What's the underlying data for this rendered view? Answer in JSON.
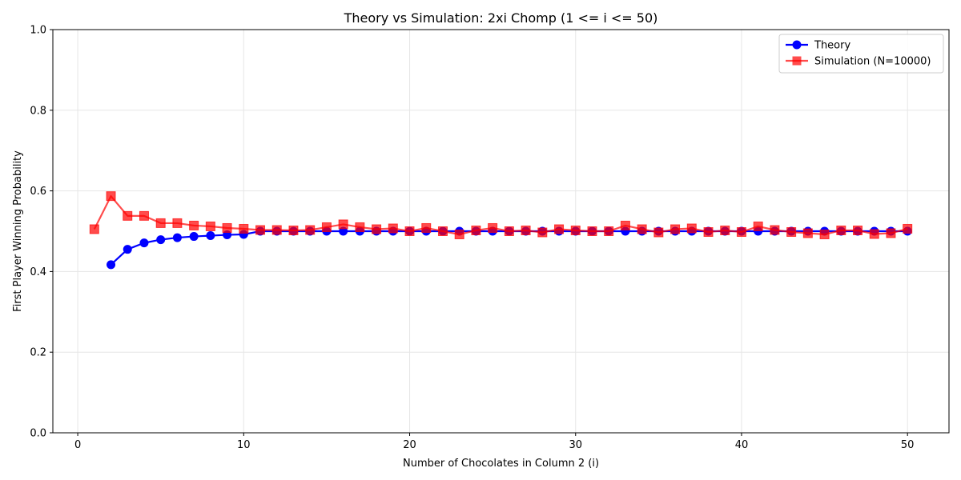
{
  "chart_data": {
    "type": "line",
    "title": "Theory vs Simulation: 2xi Chomp (1 <= i <= 50)",
    "xlabel": "Number of Chocolates in Column 2 (i)",
    "ylabel": "First Player Winning Probability",
    "xlim": [
      -1.5,
      52.5
    ],
    "ylim": [
      0.0,
      1.0
    ],
    "xticks": [
      0,
      10,
      20,
      30,
      40,
      50
    ],
    "yticks": [
      0.0,
      0.2,
      0.4,
      0.6,
      0.8,
      1.0
    ],
    "xtick_labels": [
      "0",
      "10",
      "20",
      "30",
      "40",
      "50"
    ],
    "ytick_labels": [
      "0.0",
      "0.2",
      "0.4",
      "0.6",
      "0.8",
      "1.0"
    ],
    "grid": true,
    "legend_position": "top-right",
    "series": [
      {
        "name": "Theory",
        "color": "#0000ff",
        "marker": "circle",
        "x": [
          2,
          3,
          4,
          5,
          6,
          7,
          8,
          9,
          10,
          11,
          12,
          13,
          14,
          15,
          16,
          17,
          18,
          19,
          20,
          21,
          22,
          23,
          24,
          25,
          26,
          27,
          28,
          29,
          30,
          31,
          32,
          33,
          34,
          35,
          36,
          37,
          38,
          39,
          40,
          41,
          42,
          43,
          44,
          45,
          46,
          47,
          48,
          49,
          50
        ],
        "values": [
          0.417,
          0.455,
          0.471,
          0.479,
          0.484,
          0.487,
          0.489,
          0.491,
          0.492,
          0.5,
          0.5,
          0.5,
          0.5,
          0.5,
          0.5,
          0.5,
          0.5,
          0.5,
          0.5,
          0.5,
          0.5,
          0.5,
          0.5,
          0.5,
          0.5,
          0.5,
          0.5,
          0.5,
          0.5,
          0.5,
          0.5,
          0.5,
          0.5,
          0.5,
          0.5,
          0.5,
          0.5,
          0.5,
          0.5,
          0.5,
          0.5,
          0.5,
          0.5,
          0.5,
          0.5,
          0.5,
          0.5,
          0.5,
          0.5
        ]
      },
      {
        "name": "Simulation (N=10000)",
        "color": "#ff0000",
        "marker": "square",
        "x": [
          1,
          2,
          3,
          4,
          5,
          6,
          7,
          8,
          9,
          10,
          11,
          12,
          13,
          14,
          15,
          16,
          17,
          18,
          19,
          20,
          21,
          22,
          23,
          24,
          25,
          26,
          27,
          28,
          29,
          30,
          31,
          32,
          33,
          34,
          35,
          36,
          37,
          38,
          39,
          40,
          41,
          42,
          43,
          44,
          45,
          46,
          47,
          48,
          49,
          50
        ],
        "values": [
          0.505,
          0.587,
          0.538,
          0.538,
          0.52,
          0.52,
          0.514,
          0.512,
          0.508,
          0.506,
          0.503,
          0.503,
          0.502,
          0.503,
          0.51,
          0.517,
          0.51,
          0.505,
          0.507,
          0.5,
          0.508,
          0.5,
          0.492,
          0.502,
          0.508,
          0.5,
          0.502,
          0.497,
          0.505,
          0.502,
          0.5,
          0.5,
          0.514,
          0.505,
          0.497,
          0.505,
          0.507,
          0.498,
          0.502,
          0.498,
          0.512,
          0.503,
          0.498,
          0.495,
          0.492,
          0.502,
          0.502,
          0.493,
          0.495,
          0.506
        ]
      }
    ]
  }
}
